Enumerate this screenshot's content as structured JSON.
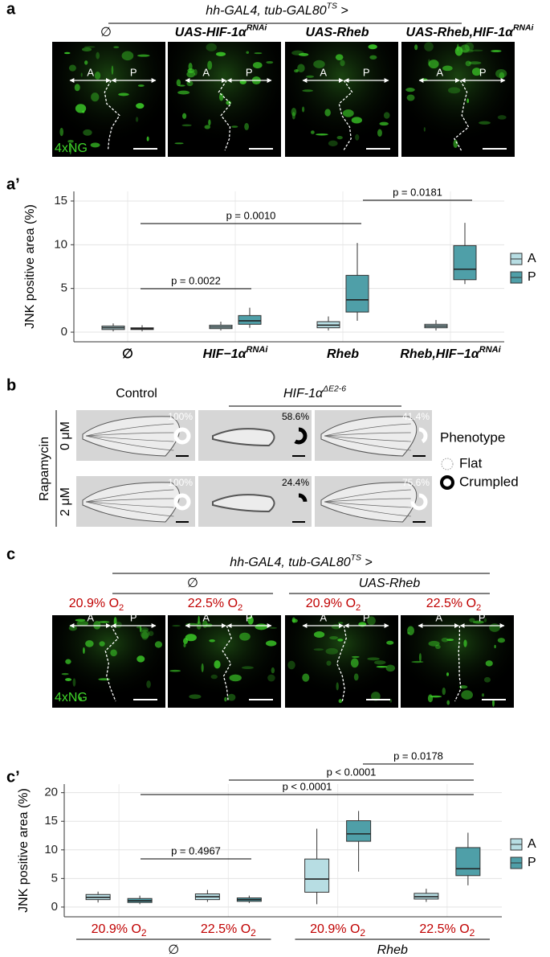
{
  "panel_a": {
    "letter": "a",
    "genotype": {
      "text": "hh-GAL4, tub-GAL80",
      "sup": "TS",
      "end": " >"
    },
    "columns": [
      {
        "text": "∅"
      },
      {
        "text": "UAS-HIF-1α",
        "sup": "RNAi"
      },
      {
        "text": "UAS-Rheb"
      },
      {
        "text": "UAS-Rheb,HIF-1α",
        "sup": "RNAi"
      }
    ],
    "reporter": "4xNG",
    "anterior": "A",
    "posterior": "P"
  },
  "panel_b": {
    "letter": "b",
    "control": "Control",
    "mutant": {
      "text": "HIF-1α",
      "sup": "ΔE2-6"
    },
    "treatment": "Rapamycin",
    "doses": [
      "0 μM",
      "2 μM"
    ],
    "legend_title": "Phenotype",
    "legend": [
      {
        "name": "Flat",
        "color": "#ffffff"
      },
      {
        "name": "Crumpled",
        "color": "#000000"
      }
    ],
    "wings": [
      {
        "value": 100,
        "value_label": "100%",
        "color": "#ffffff"
      },
      {
        "value": 58.6,
        "value_label": "58.6%",
        "color": "#000000"
      },
      {
        "value": 41.4,
        "value_label": "41.4%",
        "color": "#ffffff"
      },
      {
        "value": 100,
        "value_label": "100%",
        "color": "#ffffff"
      },
      {
        "value": 24.4,
        "value_label": "24.4%",
        "color": "#000000"
      },
      {
        "value": 75.6,
        "value_label": "75.6%",
        "color": "#ffffff"
      }
    ]
  },
  "panel_c": {
    "letter": "c",
    "genotype": {
      "text": "hh-GAL4, tub-GAL80",
      "sup": "TS",
      "end": " >"
    },
    "groups": [
      {
        "text": "∅"
      },
      {
        "text": "UAS-Rheb"
      }
    ],
    "conditions": [
      {
        "text": "20.9% O",
        "sub": "2"
      },
      {
        "text": "22.5% O",
        "sub": "2"
      },
      {
        "text": "20.9% O",
        "sub": "2"
      },
      {
        "text": "22.5% O",
        "sub": "2"
      }
    ],
    "condition_color": "#c00000",
    "reporter": "4xNG",
    "anterior": "A",
    "posterior": "P"
  },
  "chart_data": [
    {
      "type": "box",
      "label": "a’",
      "ylabel": "JNK positive area (%)",
      "categories": [
        "∅",
        "HIF−1α",
        "Rheb",
        "Rheb,HIF−1α"
      ],
      "category_sup": [
        null,
        "RNAi",
        null,
        "RNAi"
      ],
      "series": [
        {
          "name": "A",
          "color": "#b7dde3",
          "values": [
            [
              0.1,
              0.3,
              0.5,
              0.7,
              1.0
            ],
            [
              0.2,
              0.4,
              0.6,
              0.8,
              1.2
            ],
            [
              0.2,
              0.5,
              0.8,
              1.2,
              1.8
            ],
            [
              0.2,
              0.5,
              0.7,
              0.9,
              1.4
            ]
          ]
        },
        {
          "name": "P",
          "color": "#4f9fa8",
          "values": [
            [
              0.1,
              0.3,
              0.4,
              0.5,
              0.8
            ],
            [
              0.5,
              0.9,
              1.3,
              1.9,
              2.8
            ],
            [
              1.3,
              2.3,
              3.7,
              6.5,
              10.2
            ],
            [
              5.5,
              6.0,
              7.2,
              9.9,
              12.5
            ]
          ]
        }
      ],
      "ylim": [
        -1.1,
        16.1
      ],
      "yticks": [
        0,
        5,
        10,
        15
      ],
      "grid": true,
      "legend": "right",
      "significance": [
        "p = 0.0022",
        "p = 0.0010",
        "p = 0.0181"
      ]
    },
    {
      "type": "box",
      "label": "c’",
      "ylabel": "JNK positive area (%)",
      "categories": [
        "20.9% O",
        "22.5% O",
        "20.9% O",
        "22.5% O"
      ],
      "category_sub": [
        "2",
        "2",
        "2",
        "2"
      ],
      "category_color": "#c00000",
      "groups": [
        "∅",
        "Rheb"
      ],
      "series": [
        {
          "name": "A",
          "color": "#b7dde3",
          "values": [
            [
              0.8,
              1.3,
              1.7,
              2.2,
              2.7
            ],
            [
              0.9,
              1.3,
              1.8,
              2.3,
              3.0
            ],
            [
              0.5,
              2.6,
              4.9,
              8.4,
              13.7
            ],
            [
              0.9,
              1.4,
              1.8,
              2.4,
              3.2
            ]
          ]
        },
        {
          "name": "P",
          "color": "#4f9fa8",
          "values": [
            [
              0.5,
              0.8,
              1.1,
              1.5,
              2.0
            ],
            [
              0.7,
              1.0,
              1.3,
              1.6,
              2.0
            ],
            [
              6.2,
              11.5,
              12.8,
              15.1,
              16.8
            ],
            [
              3.8,
              5.5,
              6.7,
              10.4,
              13.0
            ]
          ]
        }
      ],
      "ylim": [
        -1.7,
        21.5
      ],
      "yticks": [
        0,
        5,
        10,
        15,
        20
      ],
      "grid": true,
      "legend": "right",
      "significance": [
        "p = 0.4967",
        "p < 0.0001",
        "p < 0.0001",
        "p = 0.0178"
      ]
    }
  ]
}
